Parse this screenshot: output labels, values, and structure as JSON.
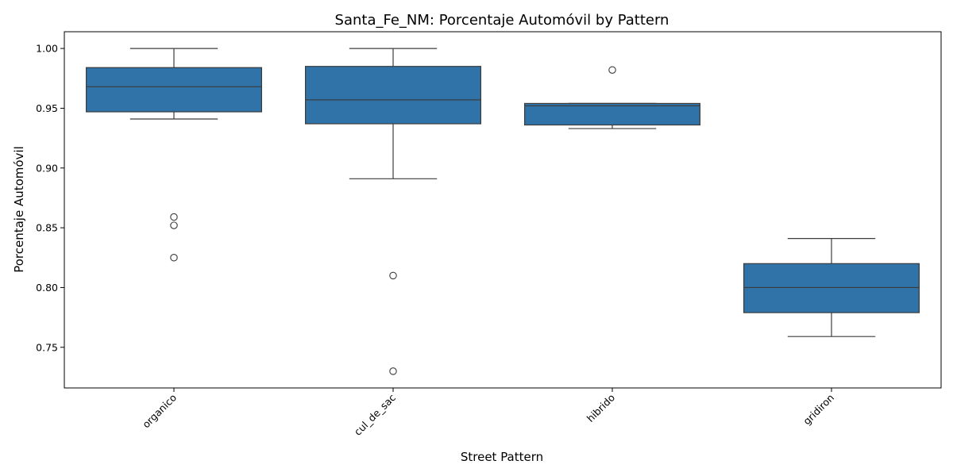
{
  "chart_data": {
    "type": "box",
    "title": "Santa_Fe_NM: Porcentaje Automóvil by Pattern",
    "xlabel": "Street Pattern",
    "ylabel": "Porcentaje Automóvil",
    "ylim": [
      0.716,
      1.014
    ],
    "yticks": [
      0.75,
      0.8,
      0.85,
      0.9,
      0.95,
      1.0
    ],
    "ytick_labels": [
      "0.75",
      "0.80",
      "0.85",
      "0.90",
      "0.95",
      "1.00"
    ],
    "categories": [
      "organico",
      "cul_de_sac",
      "hibrido",
      "gridiron"
    ],
    "box_color": "#2f73a8",
    "line_color": "#3c3c3c",
    "boxes": [
      {
        "category": "organico",
        "whisker_low": 0.941,
        "q1": 0.947,
        "median": 0.968,
        "q3": 0.984,
        "whisker_high": 1.0,
        "outliers": [
          0.859,
          0.852,
          0.825
        ]
      },
      {
        "category": "cul_de_sac",
        "whisker_low": 0.891,
        "q1": 0.937,
        "median": 0.957,
        "q3": 0.985,
        "whisker_high": 1.0,
        "outliers": [
          0.81,
          0.73
        ]
      },
      {
        "category": "hibrido",
        "whisker_low": 0.933,
        "q1": 0.936,
        "median": 0.952,
        "q3": 0.954,
        "whisker_high": 0.954,
        "outliers": [
          0.982
        ]
      },
      {
        "category": "gridiron",
        "whisker_low": 0.759,
        "q1": 0.779,
        "median": 0.8,
        "q3": 0.82,
        "whisker_high": 0.841,
        "outliers": []
      }
    ],
    "grid": false,
    "legend": "none"
  }
}
